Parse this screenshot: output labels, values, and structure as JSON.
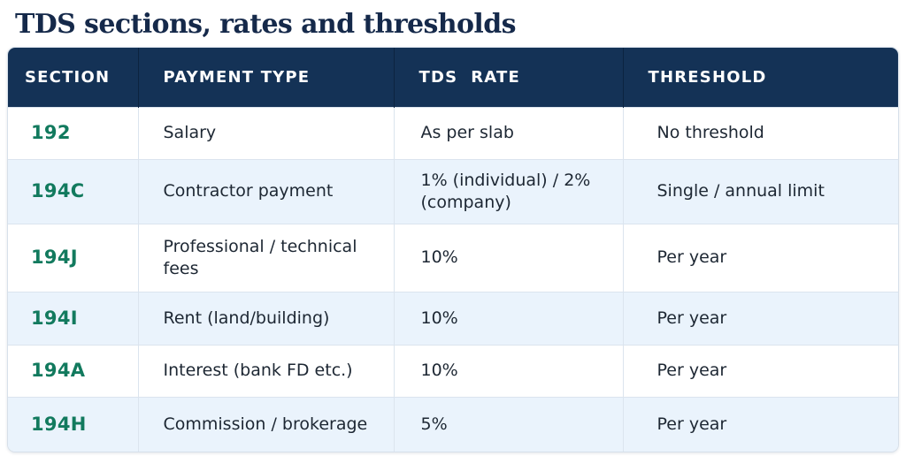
{
  "title": "TDS sections, rates and thresholds",
  "colors": {
    "header_bg": "#143256",
    "section_text": "#127a5e",
    "alt_row_bg": "#eaf3fc"
  },
  "table": {
    "headers": [
      "SECTION",
      "PAYMENT TYPE",
      "TDS  RATE",
      "THRESHOLD"
    ],
    "rows": [
      {
        "section": "192",
        "payment_type": "Salary",
        "rate": "As per slab",
        "threshold": "No threshold"
      },
      {
        "section": "194C",
        "payment_type": "Contractor payment",
        "rate": "1% (individual) / 2% (company)",
        "threshold": "Single / annual limit"
      },
      {
        "section": "194J",
        "payment_type": "Professional / technical fees",
        "rate": "10%",
        "threshold": "Per year"
      },
      {
        "section": "194I",
        "payment_type": "Rent (land/building)",
        "rate": "10%",
        "threshold": "Per year"
      },
      {
        "section": "194A",
        "payment_type": "Interest (bank FD etc.)",
        "rate": "10%",
        "threshold": "Per year"
      },
      {
        "section": "194H",
        "payment_type": "Commission / brokerage",
        "rate": "5%",
        "threshold": "Per year"
      }
    ]
  }
}
